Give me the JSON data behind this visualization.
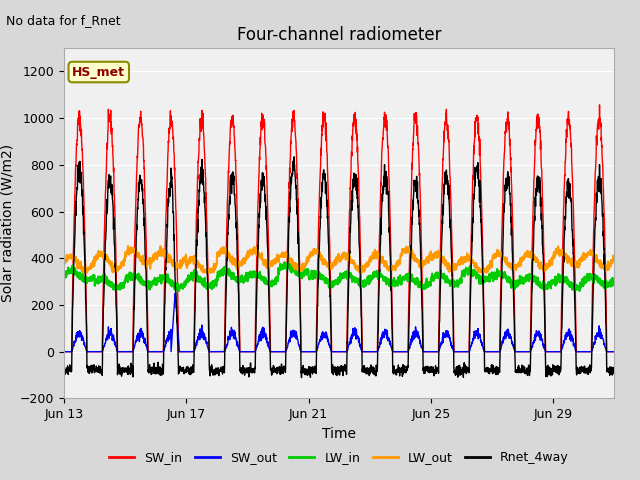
{
  "title": "Four-channel radiometer",
  "top_left_text": "No data for f_Rnet",
  "legend_label_text": "HS_met",
  "xlabel": "Time",
  "ylabel": "Solar radiation (W/m2)",
  "ylim": [
    -200,
    1300
  ],
  "yticks": [
    -200,
    0,
    200,
    400,
    600,
    800,
    1000,
    1200
  ],
  "x_tick_days": [
    13,
    17,
    21,
    25,
    29
  ],
  "x_tick_labels": [
    "Jun 13",
    "Jun 17",
    "Jun 21",
    "Jun 25",
    "Jun 29"
  ],
  "num_days": 18,
  "fig_bg_color": "#d8d8d8",
  "plot_bg_color": "#f0f0f0",
  "colors": {
    "SW_in": "#ff0000",
    "SW_out": "#0000ff",
    "LW_in": "#00cc00",
    "LW_out": "#ff9900",
    "Rnet_4way": "#000000"
  },
  "legend_entries": [
    "SW_in",
    "SW_out",
    "LW_in",
    "LW_out",
    "Rnet_4way"
  ],
  "points_per_day": 144,
  "SW_in_peak": 1000,
  "SW_out_peak": 80,
  "LW_in_base": 310,
  "LW_out_base": 390
}
